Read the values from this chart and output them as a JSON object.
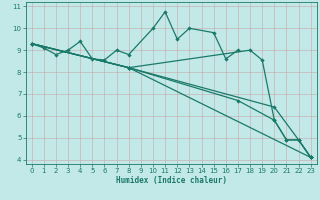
{
  "xlabel": "Humidex (Indice chaleur)",
  "bg_color": "#c2e8e8",
  "grid_color": "#c8a8a8",
  "line_color": "#1a7a6a",
  "xlim": [
    -0.5,
    23.5
  ],
  "ylim": [
    3.8,
    11.2
  ],
  "yticks": [
    4,
    5,
    6,
    7,
    8,
    9,
    10,
    11
  ],
  "xticks": [
    0,
    1,
    2,
    3,
    4,
    5,
    6,
    7,
    8,
    9,
    10,
    11,
    12,
    13,
    14,
    15,
    16,
    17,
    18,
    19,
    20,
    21,
    22,
    23
  ],
  "series1_x": [
    0,
    1,
    2,
    3,
    4,
    5,
    6,
    7,
    8,
    10,
    11,
    12,
    13,
    15,
    16,
    17
  ],
  "series1_y": [
    9.3,
    9.1,
    8.8,
    9.0,
    9.4,
    8.6,
    8.55,
    9.0,
    8.8,
    10.0,
    10.75,
    9.5,
    10.0,
    9.8,
    8.6,
    9.0
  ],
  "series3_x": [
    0,
    8,
    23
  ],
  "series3_y": [
    9.3,
    8.2,
    4.1
  ],
  "series4_x": [
    0,
    8,
    17,
    20,
    21,
    22,
    23
  ],
  "series4_y": [
    9.3,
    8.2,
    6.7,
    5.8,
    4.9,
    4.9,
    4.1
  ],
  "series5_x": [
    0,
    8,
    20,
    22,
    23
  ],
  "series5_y": [
    9.3,
    8.2,
    6.4,
    4.9,
    4.1
  ],
  "series6_x": [
    0,
    8,
    18,
    19,
    20,
    21,
    22,
    23
  ],
  "series6_y": [
    9.3,
    8.2,
    9.0,
    8.55,
    5.8,
    4.9,
    4.9,
    4.1
  ]
}
